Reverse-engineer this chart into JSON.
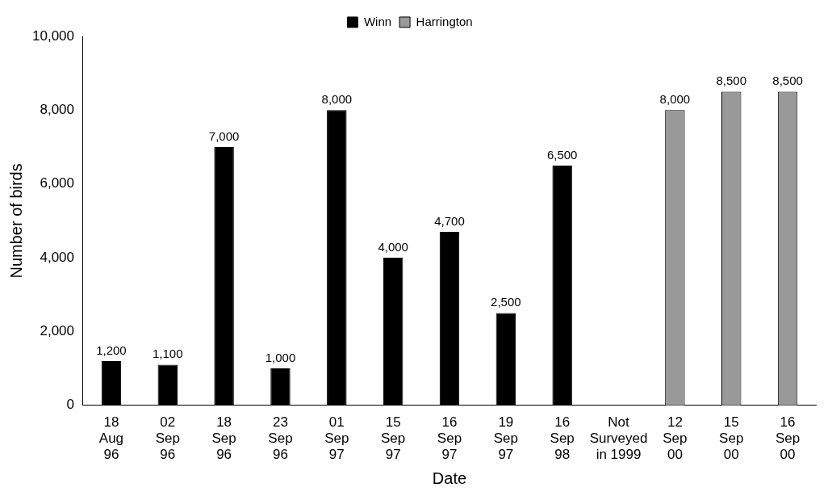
{
  "chart_data": {
    "type": "bar",
    "xlabel": "Date",
    "ylabel": "Number of birds",
    "categories": [
      "18\nAug\n96",
      "02\nSep\n96",
      "18\nSep\n96",
      "23\nSep\n96",
      "01\nSep\n97",
      "15\nSep\n97",
      "16\nSep\n97",
      "19\nSep\n97",
      "16\nSep\n98",
      "Not\nSurveyed\nin 1999",
      "12\nSep\n00",
      "15\nSep\n00",
      "16\nSep\n00"
    ],
    "series": [
      {
        "name": "Winn",
        "color": "#000000",
        "values": [
          1200,
          1100,
          7000,
          1000,
          8000,
          4000,
          4700,
          2500,
          6500,
          null,
          null,
          null,
          null
        ],
        "value_labels": [
          "1,200",
          "1,100",
          "7,000",
          "1,000",
          "8,000",
          "4,000",
          "4,700",
          "2,500",
          "6,500",
          null,
          null,
          null,
          null
        ]
      },
      {
        "name": "Harrington",
        "color": "#999999",
        "values": [
          null,
          null,
          null,
          null,
          null,
          null,
          null,
          null,
          null,
          null,
          8000,
          8500,
          8500
        ],
        "value_labels": [
          null,
          null,
          null,
          null,
          null,
          null,
          null,
          null,
          null,
          null,
          "8,000",
          "8,500",
          "8,500"
        ]
      }
    ],
    "ylim": [
      0,
      10000
    ],
    "yticks": [
      0,
      {
        "value": 2000,
        "label": "2,000"
      },
      {
        "value": 4000,
        "label": "4,000"
      },
      {
        "value": 6000,
        "label": "6,000"
      },
      {
        "value": 8000,
        "label": "8,000"
      },
      {
        "value": 10000,
        "label": "10,000"
      }
    ],
    "grid": false,
    "legend": "top"
  }
}
